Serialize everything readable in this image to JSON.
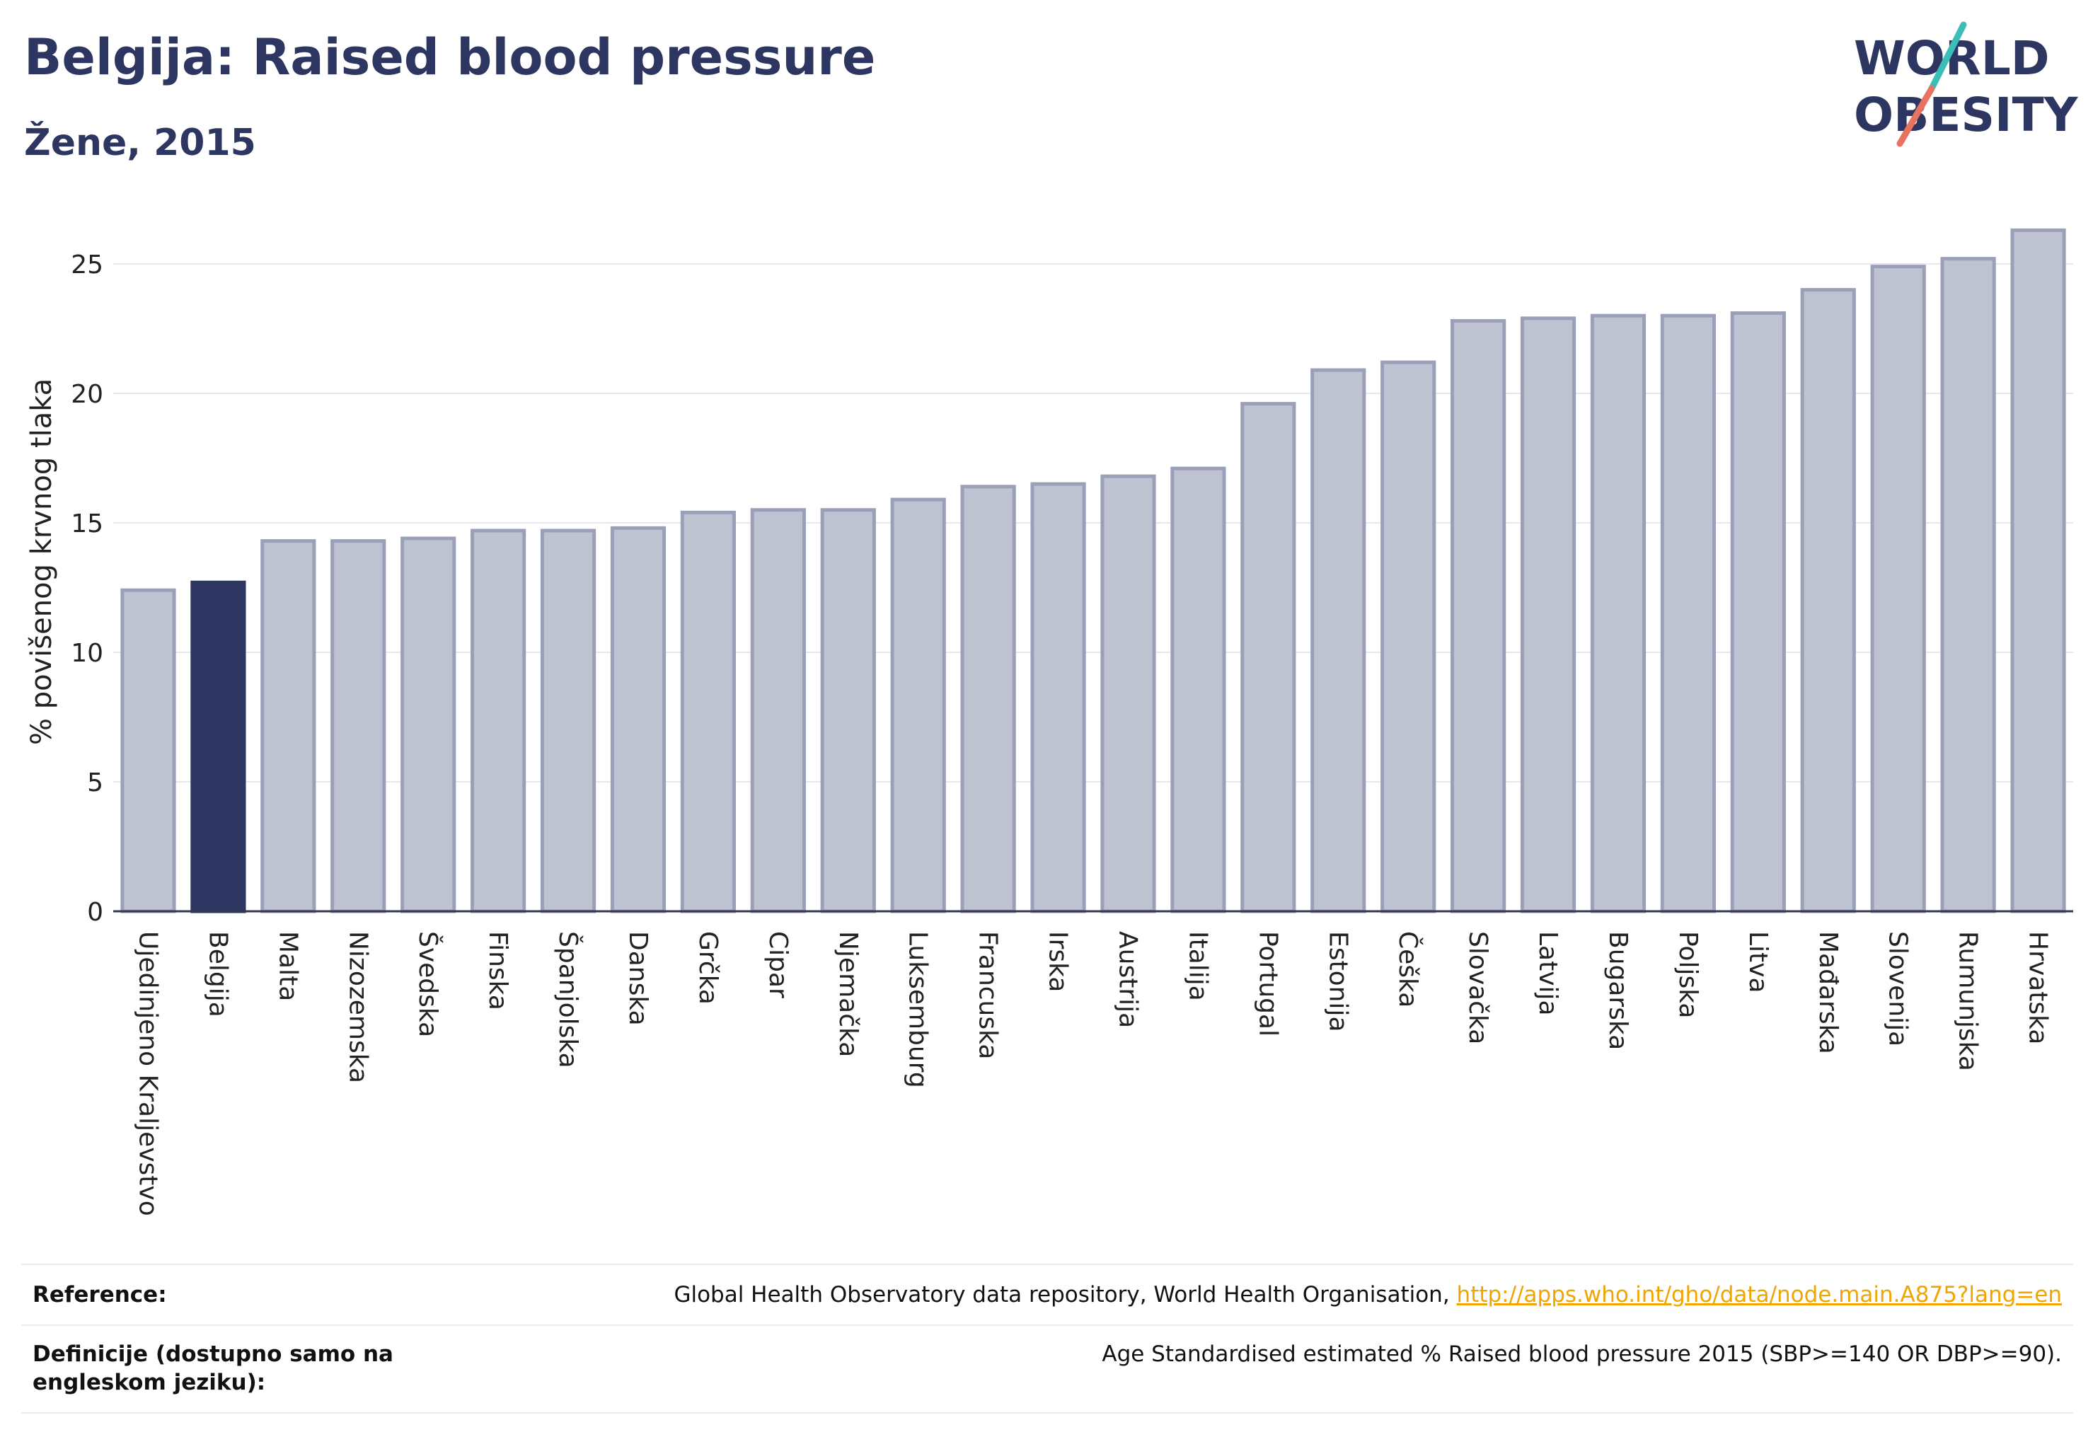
{
  "header": {
    "title": "Belgija: Raised blood pressure",
    "subtitle": "Žene, 2015"
  },
  "logo": {
    "line1": "WORLD",
    "line2": "OBESITY"
  },
  "chart_data": {
    "type": "bar",
    "ylabel": "% povišenog krvnog tlaka",
    "xlabel": "",
    "ylim": [
      0,
      27
    ],
    "yticks": [
      0,
      5,
      10,
      15,
      20,
      25
    ],
    "grid": true,
    "highlight": "Belgija",
    "categories": [
      "Ujedinjeno Kraljevstvo",
      "Belgija",
      "Malta",
      "Nizozemska",
      "Švedska",
      "Finska",
      "Španjolska",
      "Danska",
      "Grčka",
      "Cipar",
      "Njemačka",
      "Luksemburg",
      "Francuska",
      "Irska",
      "Austrija",
      "Italija",
      "Portugal",
      "Estonija",
      "Češka",
      "Slovačka",
      "Latvija",
      "Bugarska",
      "Poljska",
      "Litva",
      "Mađarska",
      "Slovenija",
      "Rumunjska",
      "Hrvatska"
    ],
    "values": [
      12.4,
      12.7,
      14.3,
      14.3,
      14.4,
      14.7,
      14.7,
      14.8,
      15.4,
      15.5,
      15.5,
      15.9,
      16.4,
      16.5,
      16.8,
      17.1,
      19.6,
      20.9,
      21.2,
      22.8,
      22.9,
      23.0,
      23.0,
      23.1,
      24.0,
      24.9,
      25.2,
      26.3
    ]
  },
  "colors": {
    "bar": "#bfc3d1",
    "bar_border": "#9aa0b8",
    "highlight": "#2d3561",
    "logo_slash_top": "#3dbdb8",
    "logo_slash_bottom": "#e8735e",
    "link": "#f0a500"
  },
  "footer": {
    "reference_label": "Reference:",
    "reference_text": "Global Health Observatory data repository, World Health Organisation, ",
    "reference_link": "http://apps.who.int/gho/data/node.main.A875?lang=en",
    "definition_label": "Definicije (dostupno samo na engleskom jeziku):",
    "definition_text": "Age Standardised estimated % Raised blood pressure 2015 (SBP>=140 OR DBP>=90)."
  }
}
